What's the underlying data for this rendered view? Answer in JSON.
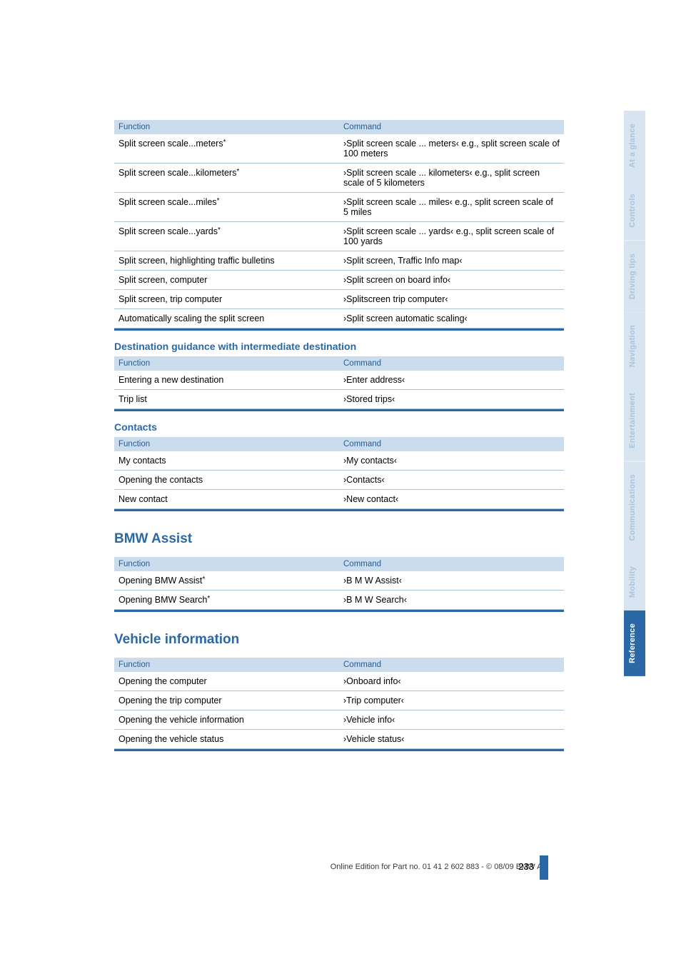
{
  "tableHeaders": {
    "function": "Function",
    "command": "Command"
  },
  "splitScreen": [
    {
      "fn": "Split screen scale...meters",
      "star": true,
      "cmd": "›Split screen scale ... meters‹ e.g., split screen scale of 100 meters"
    },
    {
      "fn": "Split screen scale...kilometers",
      "star": true,
      "cmd": "›Split screen scale ... kilometers‹ e.g., split screen scale of 5 kilometers"
    },
    {
      "fn": "Split screen scale...miles",
      "star": true,
      "cmd": "›Split screen scale ... miles‹ e.g., split screen scale of 5 miles"
    },
    {
      "fn": "Split screen scale...yards",
      "star": true,
      "cmd": "›Split screen scale ... yards‹ e.g., split screen scale of 100 yards"
    },
    {
      "fn": "Split screen, highlighting traffic bulletins",
      "star": false,
      "cmd": "›Split screen, Traffic Info map‹"
    },
    {
      "fn": "Split screen, computer",
      "star": false,
      "cmd": "›Split screen on board info‹"
    },
    {
      "fn": "Split screen, trip computer",
      "star": false,
      "cmd": "›Splitscreen trip computer‹"
    },
    {
      "fn": "Automatically scaling the split screen",
      "star": false,
      "cmd": "›Split screen automatic scaling‹"
    }
  ],
  "destGuidance": {
    "heading": "Destination guidance with intermediate destination",
    "rows": [
      {
        "fn": "Entering a new destination",
        "cmd": "›Enter address‹"
      },
      {
        "fn": "Trip list",
        "cmd": "›Stored trips‹"
      }
    ]
  },
  "contacts": {
    "heading": "Contacts",
    "rows": [
      {
        "fn": "My contacts",
        "cmd": "›My contacts‹"
      },
      {
        "fn": "Opening the contacts",
        "cmd": "›Contacts‹"
      },
      {
        "fn": "New contact",
        "cmd": "›New contact‹"
      }
    ]
  },
  "bmwAssist": {
    "heading": "BMW Assist",
    "rows": [
      {
        "fn": "Opening BMW Assist",
        "star": true,
        "cmd": "›B M W Assist‹"
      },
      {
        "fn": "Opening BMW Search",
        "star": true,
        "cmd": "›B M W Search‹"
      }
    ]
  },
  "vehicleInfo": {
    "heading": "Vehicle information",
    "rows": [
      {
        "fn": "Opening the computer",
        "cmd": "›Onboard info‹"
      },
      {
        "fn": "Opening the trip computer",
        "cmd": "›Trip computer‹"
      },
      {
        "fn": "Opening the vehicle information",
        "cmd": "›Vehicle info‹"
      },
      {
        "fn": "Opening the vehicle status",
        "cmd": "›Vehicle status‹"
      }
    ]
  },
  "sideTabs": [
    {
      "label": "At a glance",
      "active": false
    },
    {
      "label": "Controls",
      "active": false
    },
    {
      "label": "Driving tips",
      "active": false
    },
    {
      "label": "Navigation",
      "active": false
    },
    {
      "label": "Entertainment",
      "active": false
    },
    {
      "label": "Communications",
      "active": false
    },
    {
      "label": "Mobility",
      "active": false
    },
    {
      "label": "Reference",
      "active": true
    }
  ],
  "footer": {
    "page": "233",
    "text": "Online Edition for Part no. 01 41 2 602 883 - © 08/09 BMW AG"
  },
  "colors": {
    "headerBg": "#cbdced",
    "accent": "#2b68a6",
    "rowBorder": "#a8c5dc",
    "fadedTabBg": "#d8e5f0",
    "fadedTabText": "#a8c5dc"
  }
}
